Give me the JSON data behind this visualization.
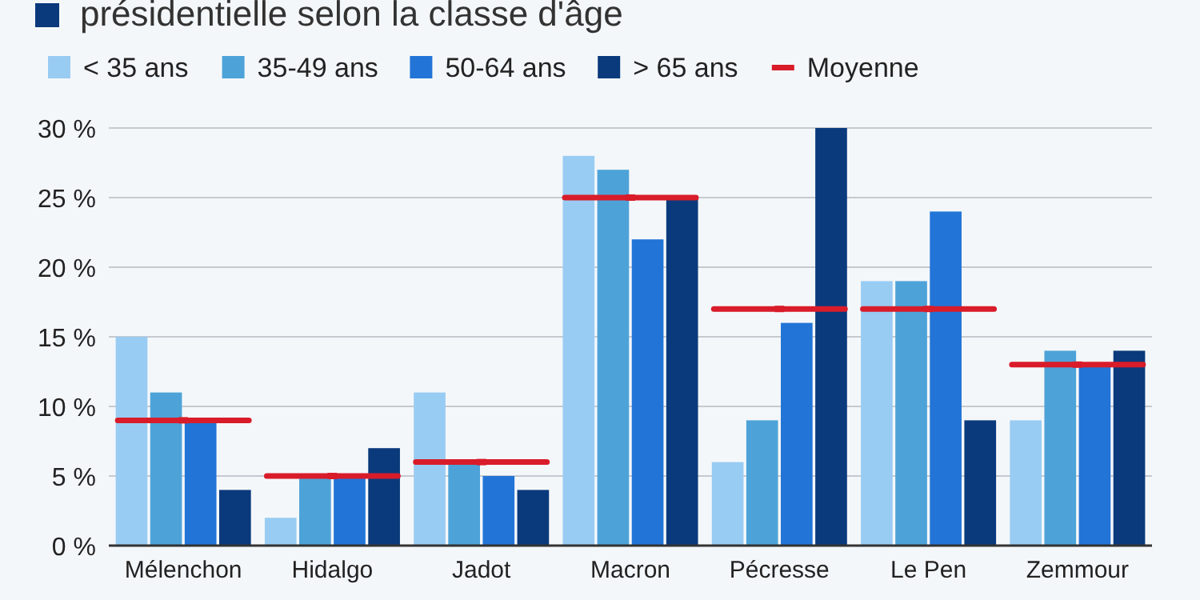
{
  "chart_data": {
    "type": "bar",
    "title": "présidentielle selon la classe d'âge",
    "categories": [
      "Mélenchon",
      "Hidalgo",
      "Jadot",
      "Macron",
      "Pécresse",
      "Le Pen",
      "Zemmour"
    ],
    "series": [
      {
        "name": "< 35 ans",
        "color": "#99ccf3",
        "values": [
          15,
          2,
          11,
          28,
          6,
          19,
          9
        ]
      },
      {
        "name": "35-49 ans",
        "color": "#4da3d8",
        "values": [
          11,
          5,
          6,
          27,
          9,
          19,
          14
        ]
      },
      {
        "name": "50-64 ans",
        "color": "#2275d7",
        "values": [
          9,
          5,
          5,
          22,
          16,
          24,
          13
        ]
      },
      {
        "name": "> 65 ans",
        "color": "#0a3a7c",
        "values": [
          4,
          7,
          4,
          25,
          30,
          9,
          14
        ]
      },
      {
        "name": "Moyenne",
        "type": "scatter",
        "marker": "square",
        "color": "#d91c2a",
        "values": [
          9,
          5,
          6,
          25,
          17,
          17,
          13
        ]
      }
    ],
    "ylim": [
      0,
      30
    ],
    "yticks": [
      {
        "value": 0,
        "label": "0 %"
      },
      {
        "value": 5,
        "label": "5 %"
      },
      {
        "value": 10,
        "label": "10 %"
      },
      {
        "value": 15,
        "label": "15 %"
      },
      {
        "value": 20,
        "label": "20 %"
      },
      {
        "value": 25,
        "label": "25 %"
      },
      {
        "value": 30,
        "label": "30 %"
      }
    ],
    "grid": "y",
    "legend": "top left"
  }
}
